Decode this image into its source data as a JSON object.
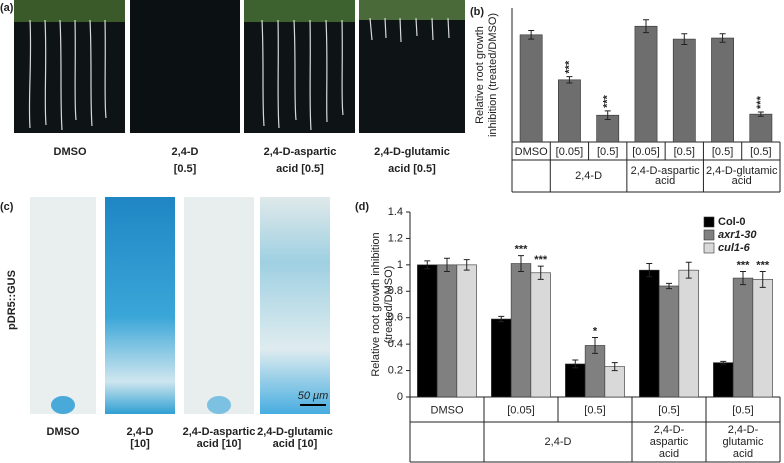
{
  "panel_labels": [
    "(a)",
    "(b)",
    "(c)",
    "(d)"
  ],
  "photos_a": {
    "captions": [
      [
        "DMSO"
      ],
      [
        "2,4-D",
        "[0.5]"
      ],
      [
        "2,4-D-aspartic",
        "acid [0.5]"
      ],
      [
        "2,4-D-glutamic",
        "acid [0.5]"
      ]
    ]
  },
  "photos_c": {
    "side_label": "pDR5::GUS",
    "scale_bar": "50 μm",
    "captions": [
      [
        "DMSO"
      ],
      [
        "2,4-D",
        "[10]"
      ],
      [
        "2,4-D-aspartic",
        "acid [10]"
      ],
      [
        "2,4-D-glutamic",
        "acid [10]"
      ]
    ]
  },
  "chart_data": [
    {
      "type": "bar",
      "ylabel": [
        "Relative root growth",
        "inhibition (treated/DMSO)"
      ],
      "groups": [
        {
          "label": null,
          "categories": [
            "DMSO"
          ]
        },
        {
          "label": [
            "2,4-D"
          ],
          "categories": [
            "[0.05]",
            "[0.5]"
          ]
        },
        {
          "label": [
            "2,4-D-aspartic",
            "acid"
          ],
          "categories": [
            "[0.05]",
            "[0.5]"
          ]
        },
        {
          "label": [
            "2,4-D-glutamic",
            "acid"
          ],
          "categories": [
            "[0.5]",
            "[0.5]"
          ]
        }
      ],
      "series": [
        {
          "name": null,
          "color": "#6e6e6e",
          "values": [
            1.0,
            0.58,
            0.25,
            1.08,
            0.96,
            0.97,
            0.26
          ],
          "errors": [
            0.04,
            0.03,
            0.04,
            0.06,
            0.05,
            0.04,
            0.02
          ]
        }
      ],
      "annotations": [
        {
          "text": "***",
          "series": 0,
          "index": 1
        },
        {
          "text": "***",
          "series": 0,
          "index": 2
        },
        {
          "text": "***",
          "series": 0,
          "index": 6
        }
      ],
      "ylim": [
        0,
        1.25
      ]
    },
    {
      "type": "bar",
      "ylabel": [
        "Relative root growth inhibition",
        "(treated/DMSO)"
      ],
      "groups": [
        {
          "label": null,
          "categories": [
            "DMSO"
          ]
        },
        {
          "label": [
            "2,4-D"
          ],
          "categories": [
            "[0.05]",
            "[0.5]"
          ]
        },
        {
          "label": [
            "2,4-D-",
            "aspartic",
            "acid"
          ],
          "categories": [
            "[0.5]"
          ]
        },
        {
          "label": [
            "2,4-D-",
            "glutamic",
            "acid"
          ],
          "categories": [
            "[0.5]"
          ]
        }
      ],
      "series": [
        {
          "name": "Col-0",
          "color": "#000000",
          "font_style": "normal",
          "values": [
            1.0,
            0.59,
            0.25,
            0.96,
            0.26
          ],
          "errors": [
            0.03,
            0.02,
            0.03,
            0.05,
            0.01
          ]
        },
        {
          "name": "axr1-30",
          "color": "#808080",
          "font_style": "italic",
          "values": [
            1.0,
            1.01,
            0.39,
            0.84,
            0.9
          ],
          "errors": [
            0.05,
            0.06,
            0.06,
            0.02,
            0.05
          ]
        },
        {
          "name": "cul1-6",
          "color": "#d9d9d9",
          "font_style": "italic",
          "values": [
            1.0,
            0.94,
            0.23,
            0.96,
            0.89
          ],
          "errors": [
            0.04,
            0.05,
            0.03,
            0.06,
            0.06
          ]
        }
      ],
      "annotations": [
        {
          "text": "***",
          "series": 1,
          "index": 1
        },
        {
          "text": "***",
          "series": 2,
          "index": 1
        },
        {
          "text": "*",
          "series": 1,
          "index": 2
        },
        {
          "text": "***",
          "series": 1,
          "index": 4
        },
        {
          "text": "***",
          "series": 2,
          "index": 4
        }
      ],
      "ylim": [
        0,
        1.4
      ],
      "yticks": [
        0,
        0.2,
        0.4,
        0.6,
        0.8,
        1,
        1.2,
        1.4
      ],
      "legend": "top-right"
    }
  ]
}
